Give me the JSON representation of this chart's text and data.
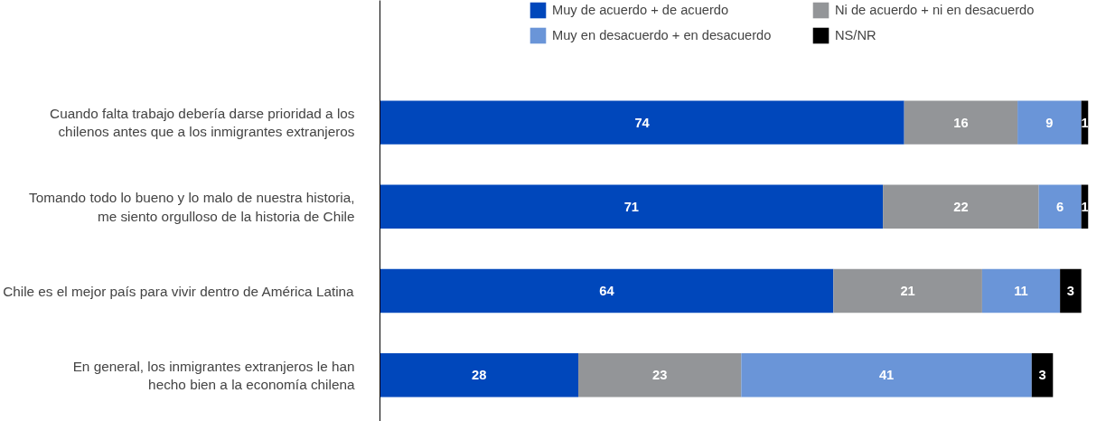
{
  "chart_data": {
    "type": "bar",
    "orientation": "horizontal",
    "stacked": true,
    "categories": [
      "Cuando falta trabajo debería darse prioridad a los\nchilenos antes que a los inmigrantes extranjeros",
      "Tomando todo lo bueno y lo malo de nuestra historia,\nme siento orgulloso de la historia de Chile",
      "Chile es el mejor país para vivir dentro de América Latina",
      "En general, los inmigrantes extranjeros le han\nhecho bien a la economía chilena"
    ],
    "series": [
      {
        "name": "Muy de acuerdo + de acuerdo",
        "color": "#0047bb",
        "values": [
          74,
          71,
          64,
          28
        ]
      },
      {
        "name": "Ni de acuerdo + ni en desacuerdo",
        "color": "#939598",
        "values": [
          16,
          22,
          21,
          23
        ]
      },
      {
        "name": "Muy en desacuerdo + en desacuerdo",
        "color": "#6a95d8",
        "values": [
          9,
          6,
          11,
          41
        ]
      },
      {
        "name": "NS/NR",
        "color": "#000000",
        "values": [
          1,
          1,
          3,
          3
        ]
      }
    ],
    "xlim": [
      0,
      100
    ],
    "data_labels": true,
    "grid": false,
    "legend": "top right",
    "tick_labels": "y"
  }
}
